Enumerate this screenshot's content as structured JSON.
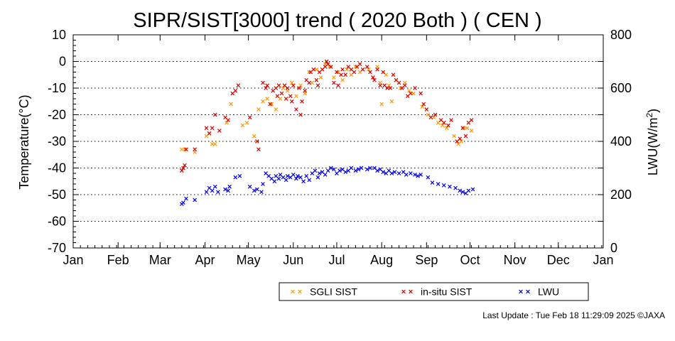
{
  "chart_data": {
    "type": "scatter",
    "title": "SIPR/SIST[3000] trend ( 2020 Both ) ( CEN )",
    "ylabel": "Temperature(°C)",
    "y2label_main": "LWU(W/m",
    "y2label_sup": "2",
    "y2label_end": ")",
    "ylim": [
      -70,
      10
    ],
    "y2lim": [
      0,
      800
    ],
    "yticks": [
      "10",
      "0",
      "-10",
      "-20",
      "-30",
      "-40",
      "-50",
      "-60",
      "-70"
    ],
    "y2ticks": [
      "800",
      "600",
      "400",
      "200",
      "0"
    ],
    "month_labels": [
      "Jan",
      "Feb",
      "Mar",
      "Apr",
      "May",
      "Jun",
      "Jul",
      "Aug",
      "Sep",
      "Oct",
      "Nov",
      "Dec",
      "Jan"
    ],
    "x_unit": "day of year",
    "xlim": [
      0,
      366
    ],
    "grid": "horizontal dotted",
    "legend_position": "bottom-right",
    "series": [
      {
        "name": "SGLI SIST",
        "color": "#ff9900",
        "axis": "left",
        "points": [
          [
            75,
            -33
          ],
          [
            77,
            -33
          ],
          [
            78,
            -33
          ],
          [
            84,
            -34
          ],
          [
            92,
            -28
          ],
          [
            94,
            -27
          ],
          [
            96,
            -31
          ],
          [
            98,
            -31
          ],
          [
            106,
            -23
          ],
          [
            109,
            -16
          ],
          [
            117,
            -24
          ],
          [
            120,
            -23
          ],
          [
            125,
            -28
          ],
          [
            128,
            -18
          ],
          [
            131,
            -15
          ],
          [
            134,
            -14
          ],
          [
            137,
            -16
          ],
          [
            140,
            -18
          ],
          [
            143,
            -14
          ],
          [
            145,
            -10
          ],
          [
            148,
            -11
          ],
          [
            151,
            -8
          ],
          [
            154,
            -13
          ],
          [
            157,
            -9
          ],
          [
            160,
            -12
          ],
          [
            163,
            -4
          ],
          [
            165,
            -8
          ],
          [
            168,
            -3
          ],
          [
            171,
            -6
          ],
          [
            174,
            -1
          ],
          [
            177,
            -2
          ],
          [
            180,
            -6
          ],
          [
            183,
            -4
          ],
          [
            186,
            -7
          ],
          [
            189,
            -3
          ],
          [
            192,
            -5
          ],
          [
            195,
            -2
          ],
          [
            198,
            -4
          ],
          [
            204,
            -3
          ],
          [
            207,
            -6
          ],
          [
            210,
            -2
          ],
          [
            212,
            -8
          ],
          [
            213,
            -16
          ],
          [
            216,
            -5
          ],
          [
            218,
            -9
          ],
          [
            220,
            -15
          ],
          [
            223,
            -7
          ],
          [
            226,
            -10
          ],
          [
            229,
            -8
          ],
          [
            232,
            -11
          ],
          [
            235,
            -12
          ],
          [
            241,
            -17
          ],
          [
            245,
            -20
          ],
          [
            249,
            -21
          ],
          [
            252,
            -23
          ],
          [
            255,
            -24
          ],
          [
            258,
            -25
          ],
          [
            263,
            -28
          ],
          [
            266,
            -31
          ],
          [
            268,
            -30
          ],
          [
            270,
            -25
          ],
          [
            272,
            -25
          ],
          [
            275,
            -26
          ]
        ]
      },
      {
        "name": "in-situ SIST",
        "color": "#dd0000",
        "axis": "left",
        "points": [
          [
            75,
            -41
          ],
          [
            76,
            -40
          ],
          [
            77,
            -39
          ],
          [
            78,
            -33
          ],
          [
            84,
            -33
          ],
          [
            92,
            -25
          ],
          [
            94,
            -27
          ],
          [
            96,
            -25
          ],
          [
            98,
            -20
          ],
          [
            101,
            -26
          ],
          [
            105,
            -21
          ],
          [
            107,
            -22
          ],
          [
            110,
            -12
          ],
          [
            112,
            -11
          ],
          [
            114,
            -9
          ],
          [
            122,
            -21
          ],
          [
            127,
            -30
          ],
          [
            128,
            -33
          ],
          [
            131,
            -8
          ],
          [
            133,
            -10
          ],
          [
            134,
            -9
          ],
          [
            136,
            -16
          ],
          [
            138,
            -11
          ],
          [
            140,
            -10
          ],
          [
            141,
            -13
          ],
          [
            142,
            -9
          ],
          [
            144,
            -12
          ],
          [
            146,
            -9
          ],
          [
            147,
            -14
          ],
          [
            148,
            -10
          ],
          [
            150,
            -13
          ],
          [
            151,
            -15
          ],
          [
            152,
            -9
          ],
          [
            154,
            -18
          ],
          [
            156,
            -10
          ],
          [
            157,
            -20
          ],
          [
            158,
            -15
          ],
          [
            160,
            -11
          ],
          [
            161,
            -7
          ],
          [
            163,
            -8
          ],
          [
            164,
            -4
          ],
          [
            166,
            -3
          ],
          [
            168,
            -7
          ],
          [
            169,
            -9
          ],
          [
            170,
            -4
          ],
          [
            172,
            -3
          ],
          [
            174,
            -2
          ],
          [
            175,
            0
          ],
          [
            176,
            -1
          ],
          [
            178,
            -2
          ],
          [
            180,
            -8
          ],
          [
            182,
            -4
          ],
          [
            183,
            -9
          ],
          [
            185,
            -5
          ],
          [
            186,
            -3
          ],
          [
            188,
            -5
          ],
          [
            190,
            -2
          ],
          [
            192,
            -3
          ],
          [
            194,
            -4
          ],
          [
            196,
            -2
          ],
          [
            198,
            -1
          ],
          [
            200,
            -3
          ],
          [
            203,
            -2
          ],
          [
            205,
            -4
          ],
          [
            207,
            -6
          ],
          [
            208,
            -7
          ],
          [
            210,
            -3
          ],
          [
            212,
            -9
          ],
          [
            214,
            -4
          ],
          [
            215,
            -9
          ],
          [
            217,
            -10
          ],
          [
            219,
            -10
          ],
          [
            221,
            -5
          ],
          [
            223,
            -7
          ],
          [
            225,
            -8
          ],
          [
            227,
            -10
          ],
          [
            229,
            -9
          ],
          [
            231,
            -13
          ],
          [
            233,
            -12
          ],
          [
            236,
            -10
          ],
          [
            240,
            -12
          ],
          [
            242,
            -16
          ],
          [
            244,
            -18
          ],
          [
            247,
            -21
          ],
          [
            250,
            -20
          ],
          [
            254,
            -22
          ],
          [
            256,
            -23
          ],
          [
            259,
            -24
          ],
          [
            261,
            -22
          ],
          [
            265,
            -30
          ],
          [
            267,
            -29
          ],
          [
            269,
            -25
          ],
          [
            271,
            -28
          ],
          [
            273,
            -23
          ],
          [
            275,
            -22
          ]
        ]
      },
      {
        "name": "LWU",
        "color": "#0000ee",
        "axis": "right",
        "points": [
          [
            75,
            165
          ],
          [
            76,
            170
          ],
          [
            78,
            185
          ],
          [
            84,
            180
          ],
          [
            92,
            210
          ],
          [
            94,
            225
          ],
          [
            96,
            215
          ],
          [
            98,
            230
          ],
          [
            100,
            210
          ],
          [
            105,
            220
          ],
          [
            107,
            215
          ],
          [
            108,
            230
          ],
          [
            112,
            265
          ],
          [
            115,
            270
          ],
          [
            122,
            230
          ],
          [
            125,
            215
          ],
          [
            127,
            220
          ],
          [
            130,
            210
          ],
          [
            131,
            240
          ],
          [
            133,
            280
          ],
          [
            135,
            270
          ],
          [
            137,
            260
          ],
          [
            139,
            250
          ],
          [
            140,
            270
          ],
          [
            142,
            260
          ],
          [
            143,
            275
          ],
          [
            145,
            265
          ],
          [
            147,
            255
          ],
          [
            148,
            270
          ],
          [
            150,
            265
          ],
          [
            152,
            275
          ],
          [
            154,
            260
          ],
          [
            155,
            270
          ],
          [
            157,
            265
          ],
          [
            159,
            250
          ],
          [
            161,
            270
          ],
          [
            163,
            255
          ],
          [
            165,
            280
          ],
          [
            167,
            290
          ],
          [
            169,
            265
          ],
          [
            170,
            280
          ],
          [
            172,
            285
          ],
          [
            174,
            275
          ],
          [
            176,
            290
          ],
          [
            178,
            300
          ],
          [
            180,
            295
          ],
          [
            182,
            280
          ],
          [
            184,
            290
          ],
          [
            186,
            295
          ],
          [
            188,
            285
          ],
          [
            190,
            290
          ],
          [
            192,
            300
          ],
          [
            195,
            290
          ],
          [
            197,
            295
          ],
          [
            199,
            300
          ],
          [
            203,
            295
          ],
          [
            205,
            300
          ],
          [
            208,
            300
          ],
          [
            210,
            290
          ],
          [
            212,
            295
          ],
          [
            214,
            285
          ],
          [
            216,
            280
          ],
          [
            218,
            290
          ],
          [
            220,
            280
          ],
          [
            222,
            285
          ],
          [
            225,
            280
          ],
          [
            228,
            285
          ],
          [
            230,
            275
          ],
          [
            233,
            280
          ],
          [
            236,
            275
          ],
          [
            238,
            270
          ],
          [
            240,
            275
          ],
          [
            245,
            265
          ],
          [
            248,
            245
          ],
          [
            252,
            240
          ],
          [
            256,
            235
          ],
          [
            260,
            230
          ],
          [
            264,
            225
          ],
          [
            267,
            215
          ],
          [
            269,
            210
          ],
          [
            271,
            205
          ],
          [
            273,
            215
          ],
          [
            276,
            220
          ]
        ]
      }
    ]
  },
  "legend": {
    "items": [
      {
        "label": "SGLI SIST",
        "color": "#ff9900"
      },
      {
        "label": "in-situ SIST",
        "color": "#dd0000"
      },
      {
        "label": "LWU",
        "color": "#0000ee"
      }
    ]
  },
  "footer": {
    "last_update": "Last Update : Tue Feb 18 11:29:09 2025  ©JAXA"
  }
}
